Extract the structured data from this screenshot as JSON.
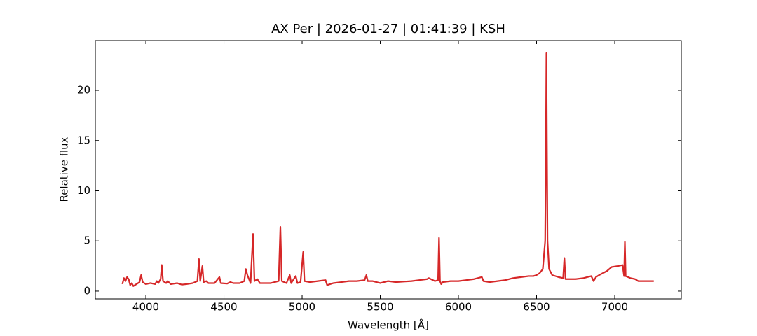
{
  "chart_data": {
    "type": "line",
    "title": "AX Per | 2026-01-27 | 01:41:39 | KSH",
    "x_label": "Wavelength [Å]",
    "y_label": "Relative flux",
    "xlim": [
      3677,
      7426
    ],
    "ylim": [
      -0.77,
      24.95
    ],
    "xticks": [
      4000,
      4500,
      5000,
      5500,
      6000,
      6500,
      7000
    ],
    "yticks": [
      0,
      5,
      10,
      15,
      20
    ],
    "grid": false,
    "series": [
      {
        "name": "AX Per",
        "color": "#d62728",
        "x": [
          3850,
          3860,
          3870,
          3880,
          3890,
          3900,
          3910,
          3920,
          3940,
          3960,
          3970,
          3980,
          4000,
          4030,
          4060,
          4070,
          4080,
          4095,
          4102,
          4110,
          4130,
          4140,
          4160,
          4200,
          4230,
          4260,
          4300,
          4330,
          4340,
          4348,
          4362,
          4370,
          4387,
          4400,
          4440,
          4471,
          4480,
          4520,
          4541,
          4560,
          4600,
          4630,
          4640,
          4650,
          4670,
          4686,
          4695,
          4713,
          4730,
          4770,
          4800,
          4850,
          4861,
          4870,
          4900,
          4921,
          4930,
          4959,
          4970,
          4990,
          5007,
          5015,
          5050,
          5100,
          5150,
          5160,
          5200,
          5250,
          5300,
          5350,
          5400,
          5411,
          5420,
          5450,
          5500,
          5550,
          5600,
          5650,
          5700,
          5750,
          5800,
          5810,
          5850,
          5870,
          5876,
          5882,
          5890,
          5900,
          5950,
          6000,
          6050,
          6100,
          6150,
          6160,
          6200,
          6250,
          6300,
          6350,
          6400,
          6450,
          6480,
          6500,
          6520,
          6540,
          6555,
          6560,
          6563,
          6566,
          6570,
          6580,
          6600,
          6640,
          6670,
          6678,
          6685,
          6720,
          6750,
          6800,
          6850,
          6865,
          6880,
          6900,
          6950,
          6980,
          7020,
          7050,
          7060,
          7065,
          7070,
          7100,
          7130,
          7150,
          7200,
          7250
        ],
        "values": [
          0.7,
          1.3,
          1.0,
          1.4,
          1.2,
          0.6,
          0.8,
          0.5,
          0.7,
          0.9,
          1.6,
          0.9,
          0.7,
          0.8,
          0.7,
          1.0,
          0.8,
          1.2,
          2.6,
          1.0,
          0.8,
          1.0,
          0.7,
          0.8,
          0.65,
          0.7,
          0.8,
          1.0,
          3.2,
          1.0,
          2.5,
          0.9,
          1.0,
          0.8,
          0.8,
          1.4,
          0.8,
          0.75,
          0.9,
          0.8,
          0.8,
          1.0,
          2.2,
          1.6,
          0.8,
          5.7,
          1.0,
          1.2,
          0.8,
          0.8,
          0.8,
          1.0,
          6.4,
          1.0,
          0.8,
          1.6,
          0.8,
          1.5,
          0.8,
          0.9,
          3.9,
          1.0,
          0.9,
          1.0,
          1.1,
          0.6,
          0.8,
          0.9,
          1.0,
          1.0,
          1.1,
          1.6,
          1.0,
          1.0,
          0.8,
          1.0,
          0.9,
          0.95,
          1.0,
          1.1,
          1.2,
          1.3,
          1.0,
          1.1,
          5.3,
          1.0,
          0.7,
          0.9,
          1.0,
          1.0,
          1.1,
          1.2,
          1.4,
          1.0,
          0.9,
          1.0,
          1.1,
          1.3,
          1.4,
          1.5,
          1.5,
          1.6,
          1.8,
          2.2,
          5,
          15,
          23.7,
          15,
          5,
          2.2,
          1.6,
          1.4,
          1.3,
          3.3,
          1.2,
          1.2,
          1.2,
          1.3,
          1.5,
          1.0,
          1.4,
          1.6,
          2.0,
          2.4,
          2.5,
          2.6,
          1.5,
          4.9,
          1.5,
          1.3,
          1.2,
          1.0,
          1.0,
          1.0
        ]
      }
    ]
  }
}
